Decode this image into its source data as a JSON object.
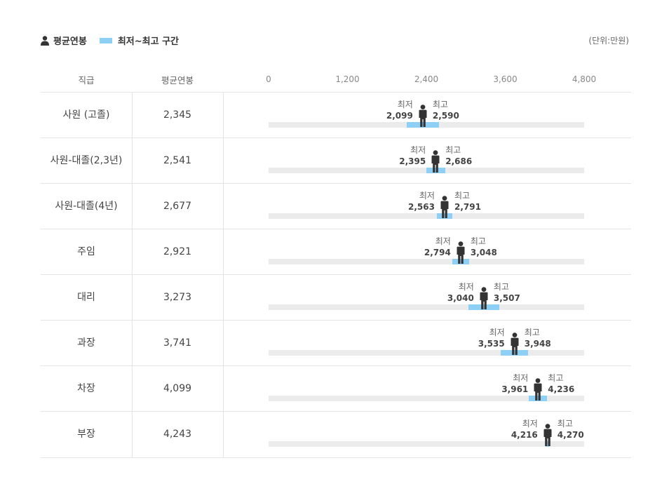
{
  "legend": {
    "avg_label": "평균연봉",
    "range_label": "최저~최고 구간",
    "avg_icon": "person-icon"
  },
  "unit_label": "(단위:만원)",
  "columns": {
    "rank": "직급",
    "avg": "평균연봉"
  },
  "colors": {
    "range": "#8ecff5",
    "track": "#ebebeb",
    "figure": "#333333"
  },
  "min_label": "최저",
  "max_label": "최고",
  "chart_data": {
    "type": "bar",
    "orientation": "horizontal-range",
    "xlim": [
      0,
      4800
    ],
    "ticks": [
      0,
      1200,
      2400,
      3600,
      4800
    ],
    "tick_labels": [
      "0",
      "1,200",
      "2,400",
      "3,600",
      "4,800"
    ],
    "categories": [
      "사원 (고졸)",
      "사원-대졸(2,3년)",
      "사원-대졸(4년)",
      "주임",
      "대리",
      "과장",
      "차장",
      "부장"
    ],
    "series": [
      {
        "name": "평균연봉",
        "values": [
          2345,
          2541,
          2677,
          2921,
          3273,
          3741,
          4099,
          4243
        ],
        "labels": [
          "2,345",
          "2,541",
          "2,677",
          "2,921",
          "3,273",
          "3,741",
          "4,099",
          "4,243"
        ]
      },
      {
        "name": "최저",
        "values": [
          2099,
          2395,
          2563,
          2794,
          3040,
          3535,
          3961,
          4216
        ],
        "labels": [
          "2,099",
          "2,395",
          "2,563",
          "2,794",
          "3,040",
          "3,535",
          "3,961",
          "4,216"
        ]
      },
      {
        "name": "최고",
        "values": [
          2590,
          2686,
          2791,
          3048,
          3507,
          3948,
          4236,
          4270
        ],
        "labels": [
          "2,590",
          "2,686",
          "2,791",
          "3,048",
          "3,507",
          "3,948",
          "4,236",
          "4,270"
        ]
      }
    ],
    "legend_position": "top-left",
    "grid": false
  }
}
